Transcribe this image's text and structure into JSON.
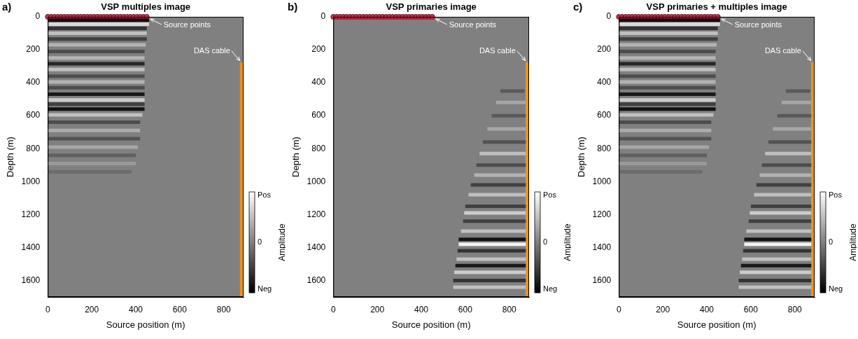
{
  "chart_data": [
    {
      "type": "heatmap",
      "panel": "a)",
      "title": "VSP multiples image",
      "xlabel": "Source position (m)",
      "ylabel": "Depth (m)",
      "xlim": [
        0,
        890
      ],
      "xticks": [
        0,
        200,
        400,
        600,
        800
      ],
      "ylim": [
        0,
        1700
      ],
      "yticks": [
        0,
        200,
        400,
        600,
        800,
        1000,
        1200,
        1400,
        1600
      ],
      "grid": false,
      "reflectors": {
        "depth": [
          20,
          45,
          70,
          100,
          135,
          170,
          210,
          250,
          285,
          320,
          360,
          395,
          430,
          470,
          505,
          530,
          560,
          595,
          640,
          690,
          740,
          790,
          840,
          890,
          940
        ],
        "x_start": [
          0,
          0,
          0,
          0,
          0,
          0,
          0,
          0,
          0,
          0,
          0,
          0,
          0,
          0,
          0,
          0,
          0,
          0,
          0,
          0,
          0,
          0,
          0,
          0,
          0
        ],
        "x_end": [
          460,
          460,
          450,
          450,
          450,
          445,
          440,
          440,
          440,
          440,
          440,
          440,
          440,
          440,
          440,
          440,
          440,
          430,
          420,
          420,
          420,
          410,
          400,
          400,
          380
        ],
        "amplitude": [
          -0.9,
          0.7,
          -0.6,
          0.5,
          -0.5,
          0.4,
          -0.4,
          0.4,
          -0.7,
          0.5,
          -0.4,
          0.4,
          -0.4,
          -0.8,
          0.6,
          -0.5,
          -0.85,
          0.5,
          -0.4,
          0.35,
          -0.35,
          0.3,
          -0.25,
          0.2,
          -0.15
        ]
      },
      "source_points": {
        "name": "Source points",
        "color": "#c8324e",
        "marker": "circle",
        "x": [
          0,
          15,
          30,
          45,
          60,
          75,
          90,
          105,
          120,
          135,
          150,
          165,
          180,
          195,
          210,
          225,
          240,
          255,
          270,
          285,
          300,
          315,
          330,
          345,
          360,
          375,
          390,
          405,
          420,
          435,
          450
        ],
        "depth": [
          0,
          0,
          0,
          0,
          0,
          0,
          0,
          0,
          0,
          0,
          0,
          0,
          0,
          0,
          0,
          0,
          0,
          0,
          0,
          0,
          0,
          0,
          0,
          0,
          0,
          0,
          0,
          0,
          0,
          0,
          0
        ]
      },
      "das_cable": {
        "name": "DAS cable",
        "color": "#f0901a",
        "x": 880,
        "depth": [
          275,
          1700
        ]
      },
      "colorbar": {
        "label": "Amplitude",
        "range": [
          -1,
          1
        ],
        "ticks": [
          {
            "value": 1,
            "label": "Pos"
          },
          0,
          {
            "value": -1,
            "label": "Neg"
          }
        ]
      }
    },
    {
      "type": "heatmap",
      "panel": "b)",
      "title": "VSP primaries image",
      "xlabel": "Source position (m)",
      "ylabel": "Depth (m)",
      "xlim": [
        0,
        890
      ],
      "xticks": [
        0,
        200,
        400,
        600,
        800
      ],
      "ylim": [
        0,
        1700
      ],
      "yticks": [
        0,
        200,
        400,
        600,
        800,
        1000,
        1200,
        1400,
        1600
      ],
      "grid": false,
      "reflectors": {
        "depth": [
          450,
          520,
          600,
          680,
          760,
          830,
          900,
          960,
          1020,
          1080,
          1150,
          1190,
          1240,
          1300,
          1350,
          1380,
          1420,
          1470,
          1510,
          1550,
          1600,
          1640
        ],
        "x_start": [
          760,
          740,
          720,
          700,
          680,
          665,
          650,
          640,
          625,
          615,
          600,
          595,
          590,
          580,
          570,
          570,
          565,
          560,
          555,
          550,
          545,
          545
        ],
        "x_end": [
          870,
          875,
          875,
          875,
          875,
          875,
          875,
          875,
          875,
          875,
          875,
          875,
          875,
          875,
          875,
          875,
          875,
          875,
          875,
          875,
          875,
          875
        ],
        "amplitude": [
          -0.3,
          0.3,
          -0.3,
          0.3,
          -0.35,
          0.5,
          -0.4,
          0.4,
          -0.5,
          0.5,
          -0.5,
          0.6,
          -0.5,
          0.5,
          -0.85,
          0.9,
          -0.6,
          0.5,
          -0.8,
          0.6,
          -0.6,
          0.5
        ]
      },
      "source_points": {
        "name": "Source points",
        "color": "#c8324e",
        "marker": "circle",
        "x": [
          0,
          15,
          30,
          45,
          60,
          75,
          90,
          105,
          120,
          135,
          150,
          165,
          180,
          195,
          210,
          225,
          240,
          255,
          270,
          285,
          300,
          315,
          330,
          345,
          360,
          375,
          390,
          405,
          420,
          435,
          450
        ],
        "depth": [
          0,
          0,
          0,
          0,
          0,
          0,
          0,
          0,
          0,
          0,
          0,
          0,
          0,
          0,
          0,
          0,
          0,
          0,
          0,
          0,
          0,
          0,
          0,
          0,
          0,
          0,
          0,
          0,
          0,
          0,
          0
        ]
      },
      "das_cable": {
        "name": "DAS cable",
        "color": "#f0901a",
        "x": 880,
        "depth": [
          275,
          1700
        ]
      },
      "colorbar": {
        "label": "Amplitude",
        "range": [
          -1,
          1
        ],
        "ticks": [
          {
            "value": 1,
            "label": "Pos"
          },
          0,
          {
            "value": -1,
            "label": "Neg"
          }
        ]
      }
    },
    {
      "type": "heatmap",
      "panel": "c)",
      "title": "VSP primaries + multiples image",
      "xlabel": "Source position (m)",
      "ylabel": "Depth (m)",
      "xlim": [
        0,
        890
      ],
      "xticks": [
        0,
        200,
        400,
        600,
        800
      ],
      "ylim": [
        0,
        1700
      ],
      "yticks": [
        0,
        200,
        400,
        600,
        800,
        1000,
        1200,
        1400,
        1600
      ],
      "grid": false,
      "reflectors": {
        "depth": [
          20,
          45,
          70,
          100,
          135,
          170,
          210,
          250,
          285,
          320,
          360,
          395,
          430,
          470,
          505,
          530,
          560,
          595,
          640,
          690,
          740,
          790,
          840,
          890,
          940,
          450,
          520,
          600,
          680,
          760,
          830,
          900,
          960,
          1020,
          1080,
          1150,
          1190,
          1240,
          1300,
          1350,
          1380,
          1420,
          1470,
          1510,
          1550,
          1600,
          1640
        ],
        "x_start": [
          0,
          0,
          0,
          0,
          0,
          0,
          0,
          0,
          0,
          0,
          0,
          0,
          0,
          0,
          0,
          0,
          0,
          0,
          0,
          0,
          0,
          0,
          0,
          0,
          0,
          760,
          740,
          720,
          700,
          680,
          665,
          650,
          640,
          625,
          615,
          600,
          595,
          590,
          580,
          570,
          570,
          565,
          560,
          555,
          550,
          545,
          545
        ],
        "x_end": [
          460,
          460,
          450,
          450,
          450,
          445,
          440,
          440,
          440,
          440,
          440,
          440,
          440,
          440,
          440,
          440,
          440,
          430,
          420,
          420,
          420,
          410,
          400,
          400,
          380,
          870,
          875,
          875,
          875,
          875,
          875,
          875,
          875,
          875,
          875,
          875,
          875,
          875,
          875,
          875,
          875,
          875,
          875,
          875,
          875,
          875,
          875
        ],
        "amplitude": [
          -0.9,
          0.7,
          -0.6,
          0.5,
          -0.5,
          0.4,
          -0.4,
          0.4,
          -0.7,
          0.5,
          -0.4,
          0.4,
          -0.4,
          -0.8,
          0.6,
          -0.5,
          -0.85,
          0.5,
          -0.4,
          0.35,
          -0.35,
          0.3,
          -0.25,
          0.2,
          -0.15,
          -0.3,
          0.3,
          -0.3,
          0.3,
          -0.35,
          0.5,
          -0.4,
          0.4,
          -0.5,
          0.5,
          -0.5,
          0.6,
          -0.5,
          0.5,
          -0.85,
          0.9,
          -0.6,
          0.5,
          -0.8,
          0.6,
          -0.6,
          0.5
        ]
      },
      "source_points": {
        "name": "Source points",
        "color": "#c8324e",
        "marker": "circle",
        "x": [
          0,
          15,
          30,
          45,
          60,
          75,
          90,
          105,
          120,
          135,
          150,
          165,
          180,
          195,
          210,
          225,
          240,
          255,
          270,
          285,
          300,
          315,
          330,
          345,
          360,
          375,
          390,
          405,
          420,
          435,
          450
        ],
        "depth": [
          0,
          0,
          0,
          0,
          0,
          0,
          0,
          0,
          0,
          0,
          0,
          0,
          0,
          0,
          0,
          0,
          0,
          0,
          0,
          0,
          0,
          0,
          0,
          0,
          0,
          0,
          0,
          0,
          0,
          0,
          0
        ]
      },
      "das_cable": {
        "name": "DAS cable",
        "color": "#f0901a",
        "x": 880,
        "depth": [
          275,
          1700
        ]
      },
      "colorbar": {
        "label": "Amplitude",
        "range": [
          -1,
          1
        ],
        "ticks": [
          {
            "value": 1,
            "label": "Pos"
          },
          0,
          {
            "value": -1,
            "label": "Neg"
          }
        ]
      }
    }
  ]
}
